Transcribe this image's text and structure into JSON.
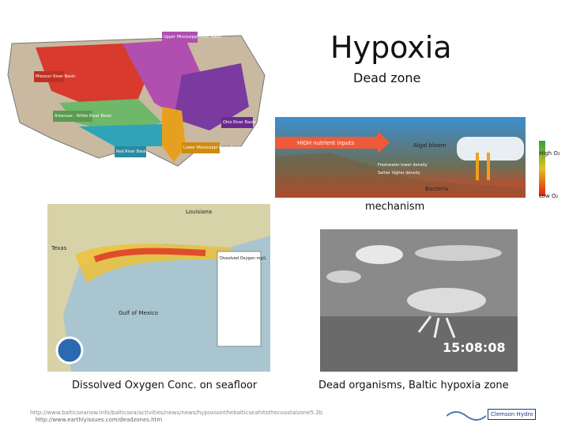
{
  "header": {
    "title": "Hypoxia",
    "subtitle": "Dead zone"
  },
  "basin_map": {
    "labels": [
      "Upper Mississippi River Basin",
      "Missouri River Basin",
      "Arkansas - White River Basin",
      "Ohio River Basin",
      "Red River Basin",
      "Lower Mississippi River Basin"
    ]
  },
  "mechanism_diagram": {
    "caption": "mechanism",
    "labels": [
      "HIGH nutrient inputs",
      "Algal bloom",
      "Freshwater lower density",
      "Saltier higher density",
      "Bacteria",
      "High O₂",
      "Low O₂"
    ]
  },
  "oxygen_map": {
    "caption": "Dissolved Oxygen Conc. on seafloor",
    "labels": [
      "Louisiana",
      "Texas",
      "Gulf of Mexico",
      "Dissolved Oxygen mg/L"
    ]
  },
  "photo": {
    "caption": "Dead organisms, Baltic hypoxia zone",
    "timestamp": "15:08:08"
  },
  "footer": {
    "sources": [
      "http://www.balticseanow.info/balticsea/activities/news/news/hypoxiainthebalticseahitsthecoastalzone5.2b",
      "http://www.earthlyissues.com/deadzones.htm"
    ],
    "logo": "Clemson Hydro"
  }
}
